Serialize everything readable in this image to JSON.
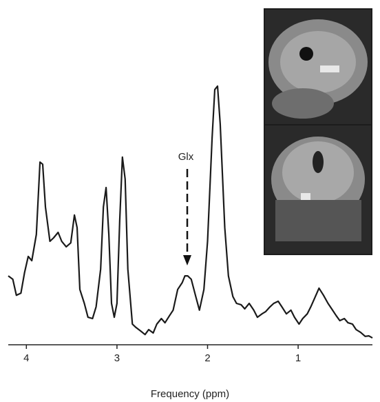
{
  "chart_data": {
    "type": "line",
    "x_label": "Frequency (ppm)",
    "annotation": "Glx",
    "xlim": [
      4.2,
      0.18
    ],
    "xticks": [
      4,
      3,
      2,
      1
    ],
    "ylim": [
      0,
      100
    ],
    "series": [
      {
        "color": "#1a1a1a",
        "x": [
          4.2,
          4.15,
          4.11,
          4.06,
          4.02,
          3.98,
          3.94,
          3.89,
          3.85,
          3.82,
          3.79,
          3.74,
          3.7,
          3.65,
          3.61,
          3.56,
          3.51,
          3.47,
          3.44,
          3.41,
          3.36,
          3.32,
          3.27,
          3.23,
          3.18,
          3.15,
          3.12,
          3.09,
          3.06,
          3.03,
          3.0,
          2.97,
          2.94,
          2.91,
          2.88,
          2.83,
          2.79,
          2.74,
          2.69,
          2.65,
          2.6,
          2.56,
          2.51,
          2.47,
          2.42,
          2.38,
          2.33,
          2.28,
          2.25,
          2.22,
          2.18,
          2.13,
          2.09,
          2.04,
          2.0,
          1.95,
          1.92,
          1.89,
          1.86,
          1.81,
          1.77,
          1.72,
          1.68,
          1.63,
          1.59,
          1.54,
          1.49,
          1.45,
          1.4,
          1.36,
          1.31,
          1.27,
          1.22,
          1.18,
          1.13,
          1.08,
          1.04,
          0.99,
          0.95,
          0.9,
          0.86,
          0.81,
          0.77,
          0.72,
          0.67,
          0.63,
          0.58,
          0.54,
          0.49,
          0.45,
          0.4,
          0.36,
          0.31,
          0.26,
          0.22,
          0.18
        ],
        "values": [
          26.3,
          25,
          18.9,
          19.7,
          27.6,
          33.7,
          32.1,
          42.1,
          69.7,
          68.9,
          52.6,
          39.5,
          40.8,
          42.9,
          39.5,
          37.4,
          38.9,
          49.5,
          44.7,
          21.1,
          15.8,
          10.5,
          10,
          14.5,
          28.9,
          52.6,
          60,
          42.1,
          15.8,
          10.5,
          15.8,
          47.4,
          71.6,
          63.2,
          28.9,
          7.9,
          6.6,
          5.3,
          3.9,
          5.8,
          4.5,
          7.9,
          10,
          8.4,
          11.1,
          13.2,
          21.1,
          23.7,
          26.3,
          26.3,
          25,
          18.4,
          13.2,
          21.1,
          39.5,
          78.9,
          97.4,
          98.7,
          84.2,
          44.7,
          26.3,
          18.4,
          15.8,
          15.3,
          13.7,
          15.8,
          13.2,
          10.5,
          11.8,
          12.6,
          14.5,
          15.8,
          16.6,
          14.5,
          11.8,
          13.2,
          10.5,
          7.9,
          10,
          11.8,
          14.5,
          18.4,
          21.6,
          18.9,
          15.8,
          13.7,
          11.1,
          9.2,
          10,
          8.4,
          7.9,
          5.8,
          4.7,
          3.2,
          3.4,
          2.6
        ]
      }
    ]
  }
}
